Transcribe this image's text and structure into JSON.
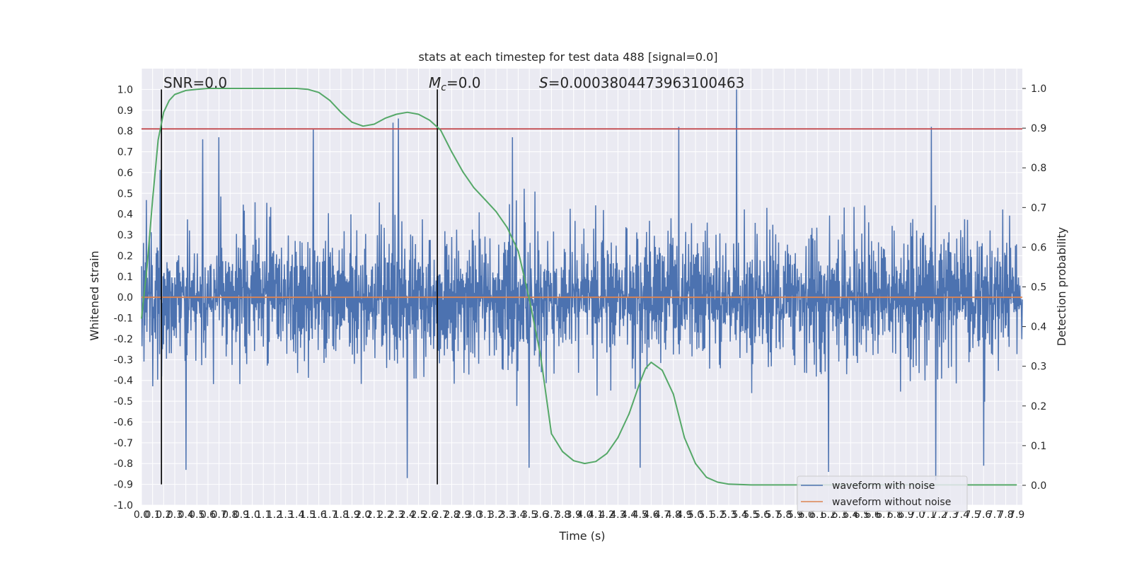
{
  "chart_data": {
    "type": "line",
    "title": "stats at each timestep for test data 488 [signal=0.0]",
    "xlabel": "Time (s)",
    "ylabel": "Whitened strain",
    "ylabel_right": "Detection probability",
    "xlim": [
      0.0,
      7.95
    ],
    "ylim": [
      -1.0,
      1.1
    ],
    "ylim_right": [
      -0.05,
      1.05
    ],
    "x_ticks": [
      0.0,
      0.1,
      0.2,
      0.3,
      0.4,
      0.5,
      0.6,
      0.7,
      0.8,
      0.9,
      1.0,
      1.1,
      1.2,
      1.3,
      1.4,
      1.5,
      1.6,
      1.7,
      1.8,
      1.9,
      2.0,
      2.1,
      2.2,
      2.3,
      2.4,
      2.5,
      2.6,
      2.7,
      2.8,
      2.9,
      3.0,
      3.1,
      3.2,
      3.3,
      3.4,
      3.5,
      3.6,
      3.7,
      3.8,
      3.9,
      4.0,
      4.1,
      4.2,
      4.3,
      4.4,
      4.5,
      4.6,
      4.7,
      4.8,
      4.9,
      5.0,
      5.1,
      5.2,
      5.3,
      5.4,
      5.5,
      5.6,
      5.7,
      5.8,
      5.9,
      6.0,
      6.1,
      6.2,
      6.3,
      6.4,
      6.5,
      6.6,
      6.7,
      6.8,
      6.9,
      7.0,
      7.1,
      7.2,
      7.3,
      7.4,
      7.5,
      7.6,
      7.7,
      7.8,
      7.9
    ],
    "y_ticks": [
      -1.0,
      -0.9,
      -0.8,
      -0.7,
      -0.6,
      -0.5,
      -0.4,
      -0.3,
      -0.2,
      -0.1,
      0.0,
      0.1,
      0.2,
      0.3,
      0.4,
      0.5,
      0.6,
      0.7,
      0.8,
      0.9,
      1.0
    ],
    "y_ticks_right": [
      0.0,
      0.1,
      0.2,
      0.3,
      0.4,
      0.5,
      0.6,
      0.7,
      0.8,
      0.9,
      1.0
    ],
    "grid": true,
    "legend_position": "lower-right",
    "legend": [
      {
        "name": "waveform with noise",
        "color": "#4c72b0"
      },
      {
        "name": "waveform without noise",
        "color": "#dd8452"
      }
    ],
    "annotations": {
      "snr": "SNR=0.0",
      "mc_symbol": "M",
      "mc_sub": "c",
      "mc_value": "=0.0",
      "s_symbol": "S",
      "s_value": "=0.0003804473963100463"
    },
    "noise_series": {
      "name": "waveform with noise",
      "color": "#4c72b0",
      "x_range": [
        0.0,
        7.95
      ],
      "typical_amplitude": 0.45,
      "peaks": [
        {
          "x": 0.55,
          "y": 0.76
        },
        {
          "x": 0.7,
          "y": 0.77
        },
        {
          "x": 1.55,
          "y": 0.81
        },
        {
          "x": 2.27,
          "y": 0.84
        },
        {
          "x": 2.32,
          "y": 0.86
        },
        {
          "x": 3.35,
          "y": 0.77
        },
        {
          "x": 4.85,
          "y": 0.82
        },
        {
          "x": 5.37,
          "y": 1.0
        },
        {
          "x": 7.13,
          "y": 0.82
        },
        {
          "x": 0.4,
          "y": -0.83
        },
        {
          "x": 2.4,
          "y": -0.87
        },
        {
          "x": 3.5,
          "y": -0.82
        },
        {
          "x": 4.5,
          "y": -0.82
        },
        {
          "x": 6.2,
          "y": -0.84
        },
        {
          "x": 7.17,
          "y": -0.88
        },
        {
          "x": 7.6,
          "y": -0.81
        }
      ]
    },
    "clean_series": {
      "name": "waveform without noise",
      "color": "#dd8452",
      "y": 0.0
    },
    "threshold": {
      "color": "#c44e52",
      "y": 0.81
    },
    "markers": {
      "color": "#000000",
      "x": [
        0.18,
        2.67
      ],
      "y_range": [
        -0.9,
        1.0
      ]
    },
    "probability_series": {
      "color": "#55a868",
      "x": [
        0.0,
        0.05,
        0.1,
        0.15,
        0.2,
        0.25,
        0.3,
        0.4,
        0.5,
        0.6,
        0.7,
        0.8,
        1.0,
        1.2,
        1.4,
        1.5,
        1.6,
        1.7,
        1.8,
        1.9,
        2.0,
        2.1,
        2.2,
        2.3,
        2.4,
        2.5,
        2.6,
        2.7,
        2.8,
        2.9,
        3.0,
        3.1,
        3.2,
        3.3,
        3.4,
        3.5,
        3.6,
        3.7,
        3.8,
        3.9,
        4.0,
        4.1,
        4.2,
        4.3,
        4.4,
        4.5,
        4.55,
        4.6,
        4.7,
        4.8,
        4.9,
        5.0,
        5.1,
        5.2,
        5.3,
        5.5,
        6.0,
        7.0,
        7.9
      ],
      "y": [
        0.42,
        0.55,
        0.72,
        0.87,
        0.94,
        0.97,
        0.985,
        0.995,
        0.998,
        1.0,
        1.0,
        1.0,
        1.0,
        1.0,
        1.0,
        0.998,
        0.99,
        0.97,
        0.94,
        0.915,
        0.905,
        0.91,
        0.925,
        0.935,
        0.94,
        0.935,
        0.92,
        0.895,
        0.84,
        0.79,
        0.75,
        0.72,
        0.69,
        0.65,
        0.59,
        0.47,
        0.33,
        0.13,
        0.085,
        0.062,
        0.055,
        0.06,
        0.08,
        0.12,
        0.18,
        0.26,
        0.295,
        0.31,
        0.29,
        0.23,
        0.12,
        0.055,
        0.02,
        0.008,
        0.003,
        0.001,
        0.001,
        0.001,
        0.001
      ]
    }
  }
}
